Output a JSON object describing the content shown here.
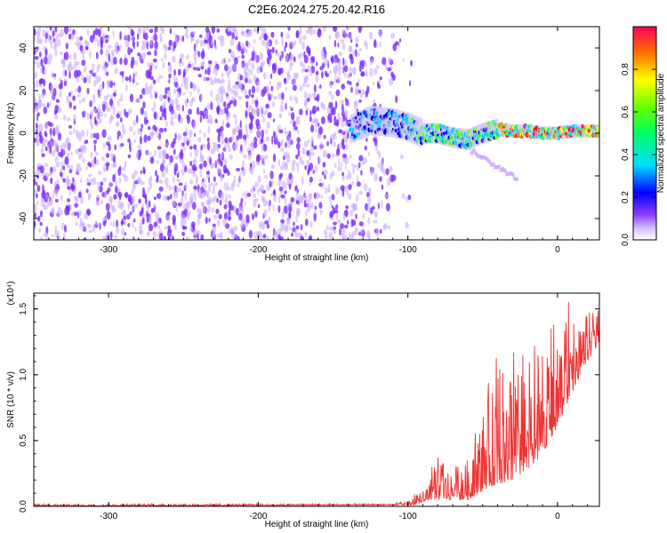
{
  "title": "C2E6.2024.275.20.42.R16",
  "chart_data": [
    {
      "type": "heatmap",
      "xlabel": "Height of straight line (km)",
      "ylabel": "Frequency (Hz)",
      "xlim": [
        -350,
        28
      ],
      "ylim": [
        -50,
        50
      ],
      "x_ticks": [
        -300,
        -200,
        -100,
        0
      ],
      "y_ticks": [
        -40,
        -20,
        0,
        20,
        40
      ],
      "noise_region": [
        -350,
        -105
      ],
      "signal_track": [
        {
          "x": -138,
          "y": 2
        },
        {
          "x": -125,
          "y": 6
        },
        {
          "x": -110,
          "y": 5
        },
        {
          "x": -100,
          "y": 3
        },
        {
          "x": -90,
          "y": 0
        },
        {
          "x": -80,
          "y": 0
        },
        {
          "x": -70,
          "y": -2
        },
        {
          "x": -60,
          "y": -3
        },
        {
          "x": -50,
          "y": 0
        },
        {
          "x": -40,
          "y": 2
        },
        {
          "x": -30,
          "y": 1
        },
        {
          "x": -20,
          "y": 1
        },
        {
          "x": -10,
          "y": 0
        },
        {
          "x": 0,
          "y": 0
        },
        {
          "x": 10,
          "y": 1
        },
        {
          "x": 20,
          "y": 1
        },
        {
          "x": 28,
          "y": 1
        }
      ],
      "colorbar": {
        "label": "Normalized spectral amplitude",
        "range": [
          0,
          1
        ],
        "ticks": [
          "0.0",
          "0.2",
          "0.4",
          "0.6",
          "0.8"
        ],
        "colors": [
          "#ffffff",
          "#b58cff",
          "#5a00ff",
          "#0000ff",
          "#00ffff",
          "#00ff00",
          "#ffff00",
          "#ff9900",
          "#ff0000",
          "#ff0066"
        ]
      },
      "colors": {
        "noise": "#7a2cff",
        "noise_light": "#c9a6ff"
      }
    },
    {
      "type": "line",
      "xlabel": "Height of straight line (km)",
      "ylabel": "SNR (10 * v/v)",
      "scale_label": "(x10⁴)",
      "xlim": [
        -350,
        28
      ],
      "ylim": [
        0,
        1.62
      ],
      "x_ticks": [
        -300,
        -200,
        -100,
        0
      ],
      "y_ticks": [
        "0.0",
        "0.5",
        "1.0",
        "1.5"
      ],
      "color": "#ee3333",
      "envelope": [
        {
          "x": -350,
          "y": 0.02
        },
        {
          "x": -110,
          "y": 0.02
        },
        {
          "x": -100,
          "y": 0.05
        },
        {
          "x": -90,
          "y": 0.15
        },
        {
          "x": -85,
          "y": 0.28
        },
        {
          "x": -78,
          "y": 0.42
        },
        {
          "x": -70,
          "y": 0.3
        },
        {
          "x": -60,
          "y": 0.45
        },
        {
          "x": -50,
          "y": 0.75
        },
        {
          "x": -43,
          "y": 1.1
        },
        {
          "x": -37,
          "y": 1.58
        },
        {
          "x": -30,
          "y": 1.3
        },
        {
          "x": -20,
          "y": 1.2
        },
        {
          "x": -10,
          "y": 1.3
        },
        {
          "x": 0,
          "y": 1.45
        },
        {
          "x": 8,
          "y": 1.58
        },
        {
          "x": 15,
          "y": 1.45
        },
        {
          "x": 28,
          "y": 1.5
        }
      ],
      "floor": [
        {
          "x": -350,
          "y": 0.0
        },
        {
          "x": -95,
          "y": 0.01
        },
        {
          "x": -85,
          "y": 0.05
        },
        {
          "x": -60,
          "y": 0.05
        },
        {
          "x": -45,
          "y": 0.15
        },
        {
          "x": -30,
          "y": 0.2
        },
        {
          "x": -15,
          "y": 0.3
        },
        {
          "x": 0,
          "y": 0.6
        },
        {
          "x": 15,
          "y": 1.0
        },
        {
          "x": 28,
          "y": 1.25
        }
      ]
    }
  ]
}
